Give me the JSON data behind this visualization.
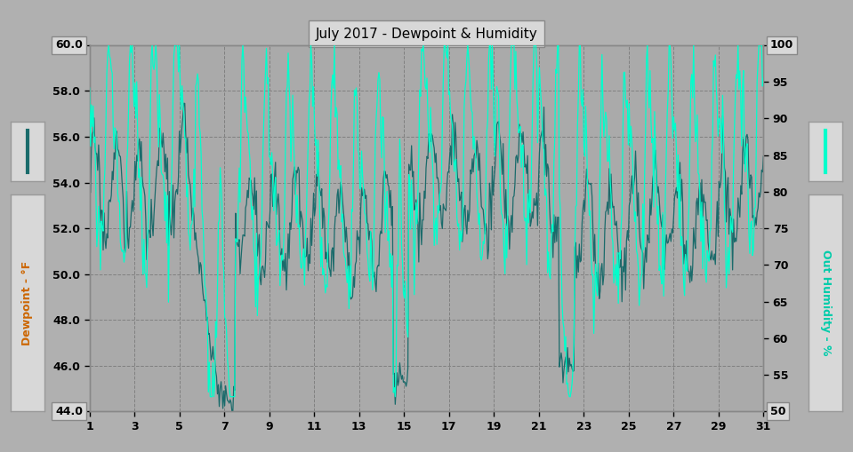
{
  "title": "July 2017 - Dewpoint & Humidity",
  "ylabel_left": "Dewpoint - °F",
  "ylabel_right": "Out Humidity - %",
  "ylim_left": [
    44.0,
    60.0
  ],
  "ylim_right": [
    50,
    100
  ],
  "yticks_left": [
    44.0,
    46.0,
    48.0,
    50.0,
    52.0,
    54.0,
    56.0,
    58.0,
    60.0
  ],
  "yticks_right": [
    50,
    55,
    60,
    65,
    70,
    75,
    80,
    85,
    90,
    95,
    100
  ],
  "xticks": [
    1,
    3,
    5,
    7,
    9,
    11,
    13,
    15,
    17,
    19,
    21,
    23,
    25,
    27,
    29,
    31
  ],
  "xlim": [
    1,
    31
  ],
  "bg_color": "#b0b0b0",
  "plot_bg_color": "#aaaaaa",
  "grid_color": "#808080",
  "dewpoint_color": "#1a6b6b",
  "humidity_color": "#00ffcc",
  "label_box_color": "#d8d8d8",
  "label_box_edge": "#999999",
  "axis_label_color_left": "#cc6600",
  "axis_label_color_right": "#00ccaa",
  "n_points": 744
}
